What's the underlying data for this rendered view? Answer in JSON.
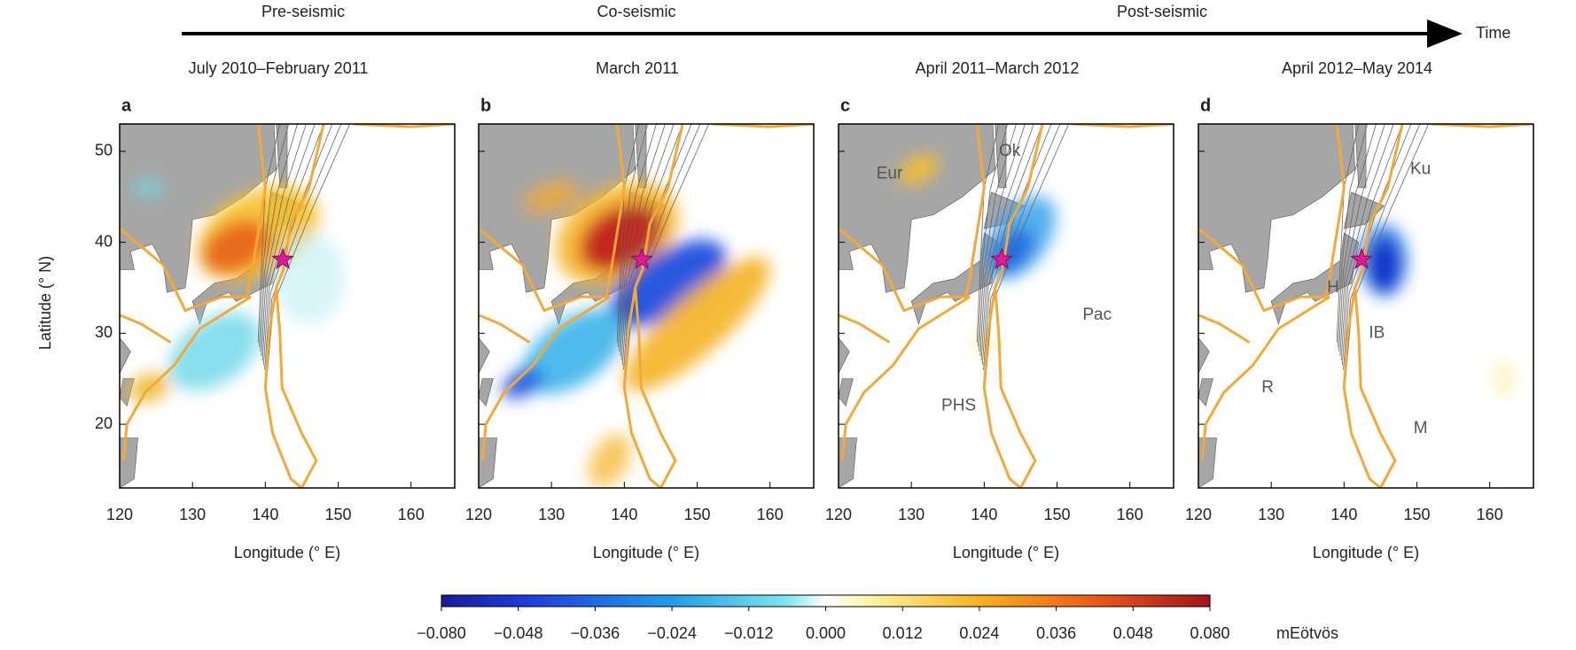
{
  "figure": {
    "timeline": {
      "phases": [
        "Pre-seismic",
        "Co-seismic",
        "Post-seismic"
      ],
      "time_label": "Time"
    },
    "panels": [
      {
        "letter": "a",
        "period": "July 2010–February 2011",
        "place_labels": []
      },
      {
        "letter": "b",
        "period": "March 2011",
        "place_labels": []
      },
      {
        "letter": "c",
        "period": "April 2011–March 2012",
        "place_labels": [
          "Eur",
          "Ok",
          "Pac",
          "PHS"
        ]
      },
      {
        "letter": "d",
        "period": "April 2012–May 2014",
        "place_labels": [
          "Ku",
          "H",
          "IB",
          "R",
          "M"
        ]
      }
    ],
    "axes": {
      "xlabel": "Longitude (° E)",
      "ylabel": "Latitude (° N)",
      "xlim": [
        120,
        166
      ],
      "ylim": [
        13,
        53
      ],
      "xticks": [
        120,
        130,
        140,
        150,
        160
      ],
      "yticks": [
        20,
        30,
        40,
        50
      ]
    },
    "colorbar": {
      "unit": "mEötvös",
      "lim": [
        -0.08,
        0.08
      ],
      "ticks": [
        {
          "value": -0.08,
          "label": "−0.080"
        },
        {
          "value": -0.048,
          "label": "−0.048"
        },
        {
          "value": -0.036,
          "label": "−0.036"
        },
        {
          "value": -0.024,
          "label": "−0.024"
        },
        {
          "value": -0.012,
          "label": "−0.012"
        },
        {
          "value": 0,
          "label": "0.000"
        },
        {
          "value": 0.012,
          "label": "0.012"
        },
        {
          "value": 0.024,
          "label": "0.024"
        },
        {
          "value": 0.036,
          "label": "0.036"
        },
        {
          "value": 0.048,
          "label": "0.048"
        },
        {
          "value": 0.08,
          "label": "0.080"
        }
      ]
    }
  }
}
